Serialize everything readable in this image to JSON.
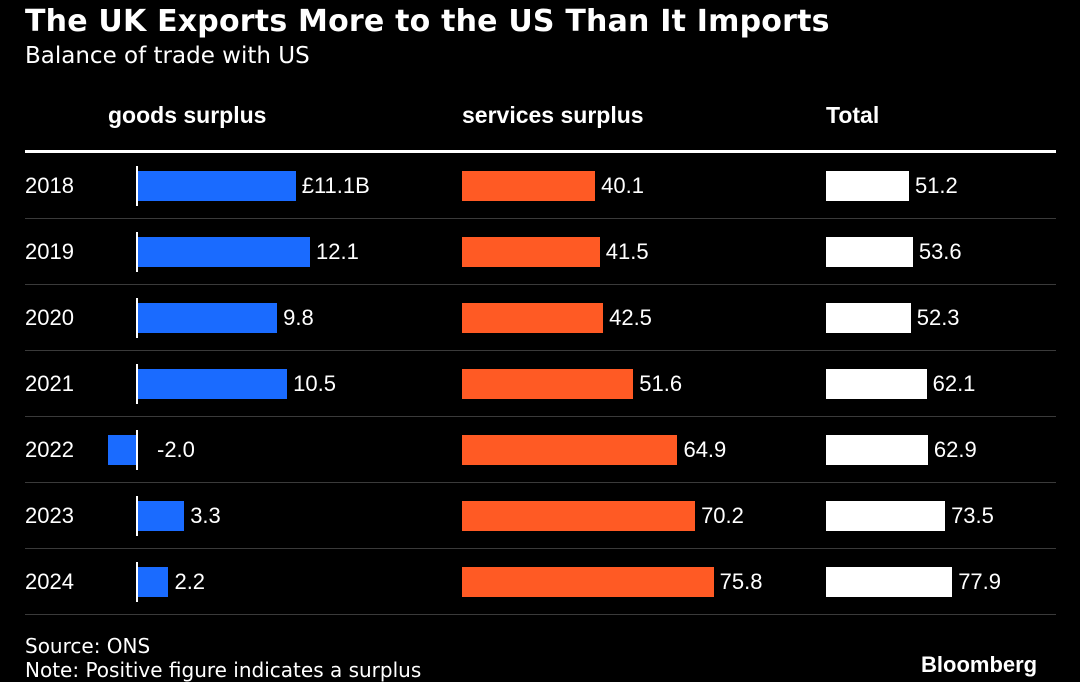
{
  "title": "The UK Exports More to the US Than It Imports",
  "subtitle": "Balance of trade with US",
  "columns": {
    "goods": "goods surplus",
    "services": "services surplus",
    "total": "Total"
  },
  "footer": {
    "source": "Source: ONS",
    "note": "Note: Positive figure indicates a surplus",
    "brand": "Bloomberg"
  },
  "colors": {
    "goods": "#1A6BFF",
    "services": "#FF5A24",
    "total": "#FFFFFF",
    "background": "#000000"
  },
  "chart_data": {
    "type": "bar",
    "categories": [
      "2018",
      "2019",
      "2020",
      "2021",
      "2022",
      "2023",
      "2024"
    ],
    "series": [
      {
        "name": "goods surplus",
        "values": [
          11.1,
          12.1,
          9.8,
          10.5,
          -2.0,
          3.3,
          2.2
        ],
        "labels": [
          "£11.1B",
          "12.1",
          "9.8",
          "10.5",
          "-2.0",
          "3.3",
          "2.2"
        ]
      },
      {
        "name": "services surplus",
        "values": [
          40.1,
          41.5,
          42.5,
          51.6,
          64.9,
          70.2,
          75.8
        ],
        "labels": [
          "40.1",
          "41.5",
          "42.5",
          "51.6",
          "64.9",
          "70.2",
          "75.8"
        ]
      },
      {
        "name": "Total",
        "values": [
          51.2,
          53.6,
          52.3,
          62.1,
          62.9,
          73.5,
          77.9
        ],
        "labels": [
          "51.2",
          "53.6",
          "52.3",
          "62.1",
          "62.9",
          "73.5",
          "77.9"
        ]
      }
    ]
  }
}
